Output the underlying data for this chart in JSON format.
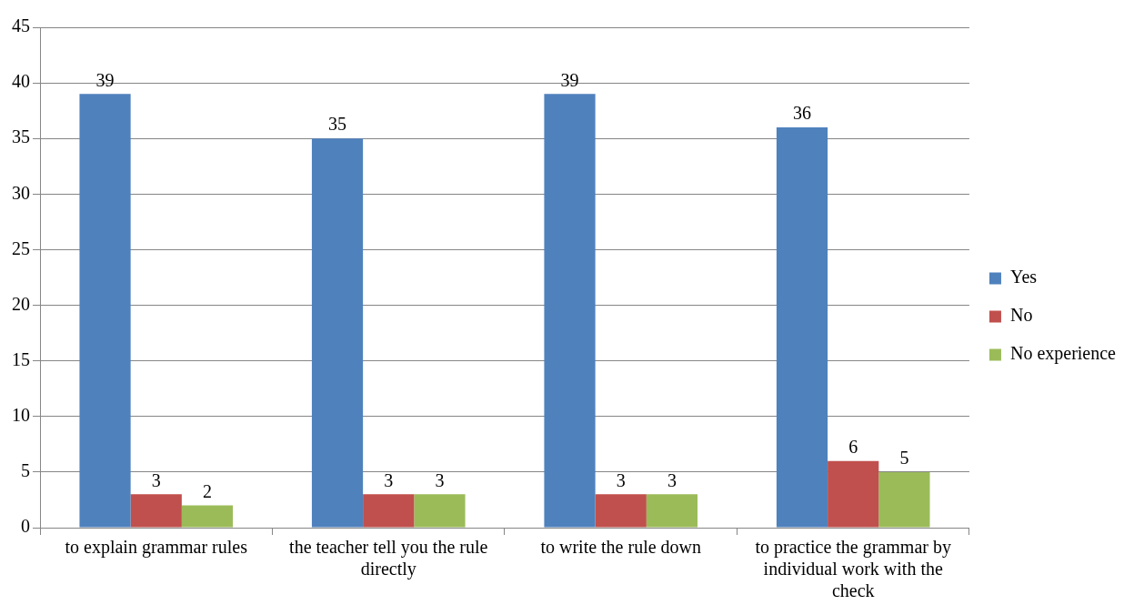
{
  "chart_data": {
    "type": "bar",
    "categories": [
      "to explain grammar rules",
      "the teacher tell you the rule directly",
      "to write the rule down",
      "to practice the grammar by individual work with the check"
    ],
    "series": [
      {
        "name": "Yes",
        "color": "#4f81bd",
        "values": [
          39,
          35,
          39,
          36
        ]
      },
      {
        "name": "No",
        "color": "#c0504d",
        "values": [
          3,
          3,
          3,
          6
        ]
      },
      {
        "name": "No experience",
        "color": "#9bbb59",
        "values": [
          2,
          3,
          3,
          5
        ]
      }
    ],
    "ylim": [
      0,
      45
    ],
    "yticks": [
      0,
      5,
      10,
      15,
      20,
      25,
      30,
      35,
      40,
      45
    ],
    "grid": "y",
    "legend": "right",
    "data_labels": true
  }
}
